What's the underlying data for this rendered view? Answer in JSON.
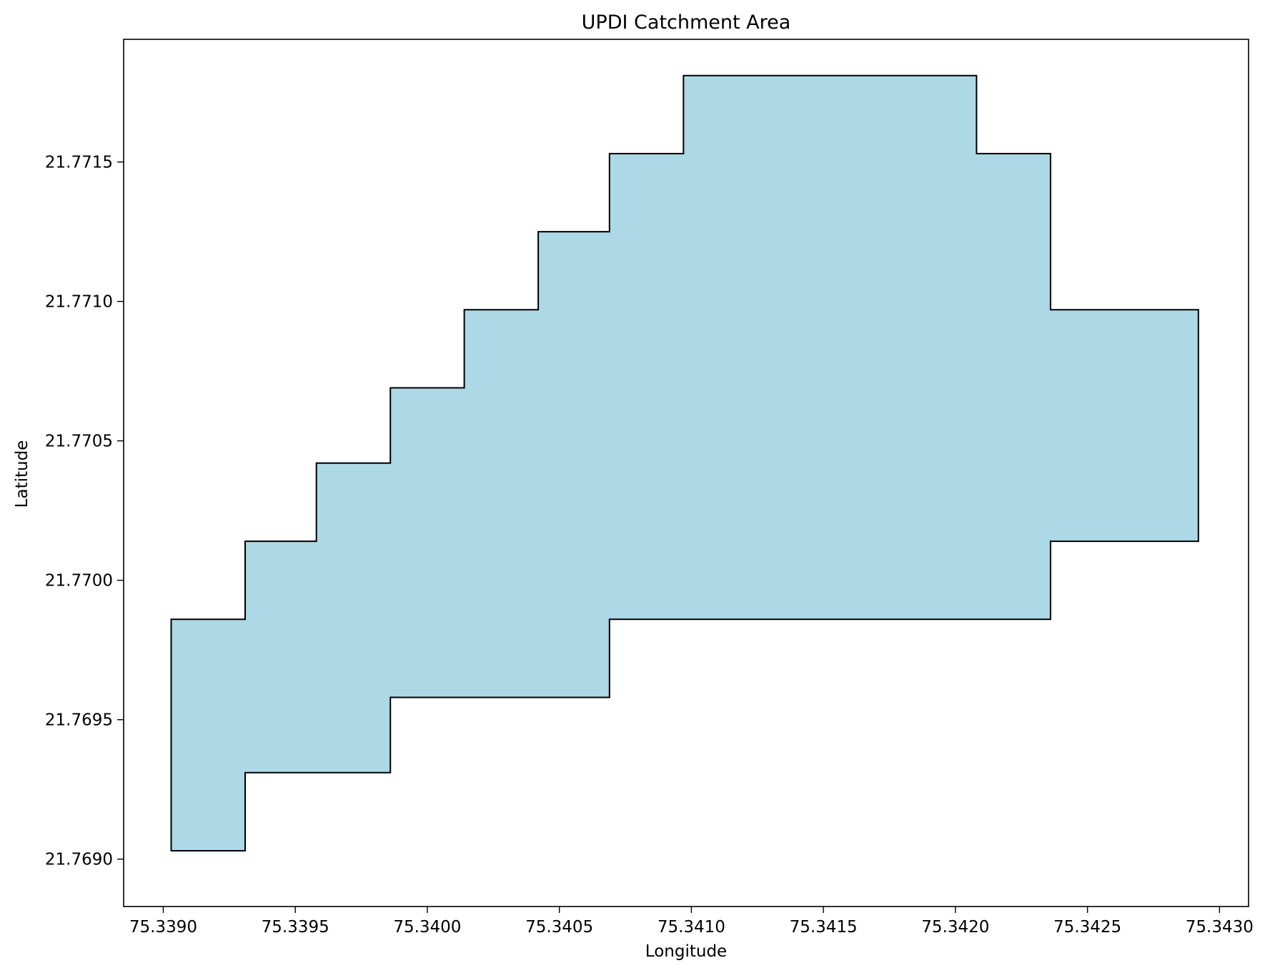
{
  "chart_data": {
    "type": "area",
    "title": "UPDI Catchment Area",
    "xlabel": "Longitude",
    "ylabel": "Latitude",
    "xlim": [
      75.33885,
      75.34311
    ],
    "ylim": [
      21.76883,
      21.77194
    ],
    "x_ticks": [
      75.339,
      75.3395,
      75.34,
      75.3405,
      75.341,
      75.3415,
      75.342,
      75.3425,
      75.343
    ],
    "x_tick_labels": [
      "75.3390",
      "75.3395",
      "75.3400",
      "75.3405",
      "75.3410",
      "75.3415",
      "75.3420",
      "75.3425",
      "75.3430"
    ],
    "y_ticks": [
      21.769,
      21.7695,
      21.77,
      21.7705,
      21.771,
      21.7715
    ],
    "y_tick_labels": [
      "21.7690",
      "21.7695",
      "21.7700",
      "21.7705",
      "21.7710",
      "21.7715"
    ],
    "grid": false,
    "polygon": {
      "fill_color": "#add8e6",
      "edge_color": "#000000",
      "points": [
        [
          75.33903,
          21.76903
        ],
        [
          75.33931,
          21.76903
        ],
        [
          75.33931,
          21.76931
        ],
        [
          75.33986,
          21.76931
        ],
        [
          75.33986,
          21.76958
        ],
        [
          75.34069,
          21.76958
        ],
        [
          75.34069,
          21.76986
        ],
        [
          75.34236,
          21.76986
        ],
        [
          75.34236,
          21.77014
        ],
        [
          75.34292,
          21.77014
        ],
        [
          75.34292,
          21.77097
        ],
        [
          75.34236,
          21.77097
        ],
        [
          75.34236,
          21.77153
        ],
        [
          75.34208,
          21.77153
        ],
        [
          75.34208,
          21.77181
        ],
        [
          75.34097,
          21.77181
        ],
        [
          75.34097,
          21.77153
        ],
        [
          75.34069,
          21.77153
        ],
        [
          75.34069,
          21.77125
        ],
        [
          75.34042,
          21.77125
        ],
        [
          75.34042,
          21.77097
        ],
        [
          75.34014,
          21.77097
        ],
        [
          75.34014,
          21.77069
        ],
        [
          75.33986,
          21.77069
        ],
        [
          75.33986,
          21.77042
        ],
        [
          75.33958,
          21.77042
        ],
        [
          75.33958,
          21.77014
        ],
        [
          75.33931,
          21.77014
        ],
        [
          75.33931,
          21.76986
        ],
        [
          75.33903,
          21.76986
        ]
      ]
    }
  }
}
